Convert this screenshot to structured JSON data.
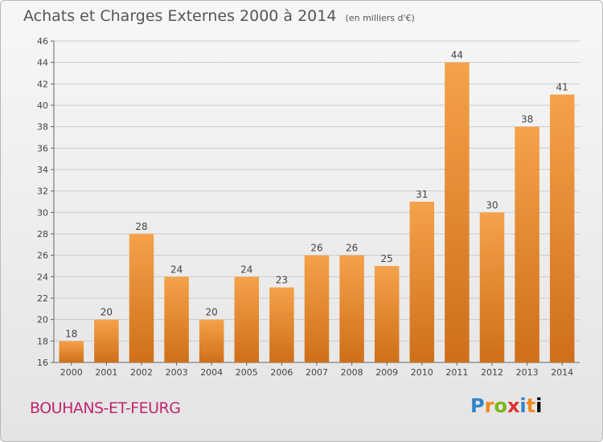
{
  "title": "Achats et Charges Externes 2000 à 2014",
  "unit": "(en milliers d'€)",
  "commune": "BOUHANS-ET-FEURG",
  "logo_text": "Proxiti",
  "colors": {
    "bar_light": "#f5a24a",
    "bar_dark": "#cf6f19",
    "title": "#555555",
    "commune": "#c0256e",
    "grid": "#cccccc"
  },
  "chart_data": {
    "type": "bar",
    "title": "Achats et Charges Externes 2000 à 2014",
    "subtitle": "(en milliers d'€)",
    "categories": [
      "2000",
      "2001",
      "2002",
      "2003",
      "2004",
      "2005",
      "2006",
      "2007",
      "2008",
      "2009",
      "2010",
      "2011",
      "2012",
      "2013",
      "2014"
    ],
    "values": [
      18,
      20,
      28,
      24,
      20,
      24,
      23,
      26,
      26,
      25,
      31,
      44,
      30,
      38,
      41
    ],
    "ylim": [
      16,
      46
    ],
    "yticks": [
      16,
      18,
      20,
      22,
      24,
      26,
      28,
      30,
      32,
      34,
      36,
      38,
      40,
      42,
      44,
      46
    ],
    "grid": true,
    "data_labels": true
  }
}
